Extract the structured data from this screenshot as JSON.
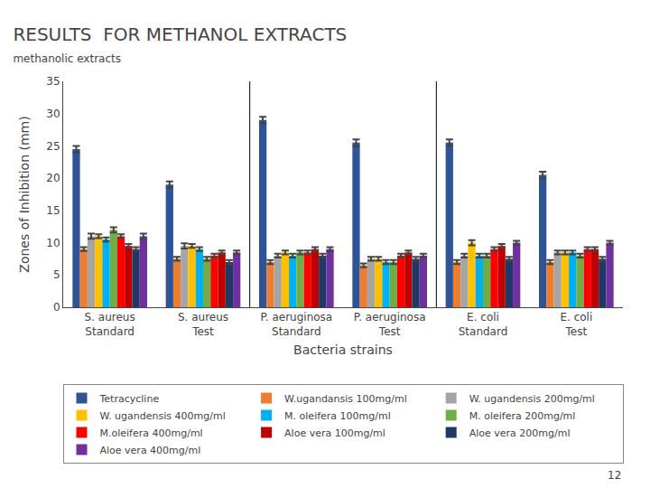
{
  "chart_data": {
    "type": "bar",
    "title": "RESULTS  FOR METHANOL EXTRACTS",
    "subtitle": "methanolic extracts",
    "xlabel": "Bacteria strains",
    "ylabel": "Zones of Inhibition (mm)",
    "annotations": [
      "12"
    ],
    "categories": [
      "S. aureus\nStandard",
      "S. aureus\nTest",
      "P. aeruginosa\nStandard",
      "P. aeruginosa\nTest",
      "E. coli\nStandard",
      "E. coli\nTest"
    ],
    "series": [
      {
        "name": "Tetracycline",
        "color": "#2F5496",
        "values": [
          24.5,
          19.0,
          29.0,
          25.5,
          25.5,
          20.5
        ],
        "errors": [
          0.5,
          0.5,
          0.5,
          0.5,
          0.5,
          0.5
        ]
      },
      {
        "name": "W.ugandansis 100mg/ml",
        "color": "#ED7D31",
        "values": [
          9.0,
          7.5,
          7.0,
          6.5,
          7.0,
          7.0
        ],
        "errors": [
          0.3,
          0.3,
          0.3,
          0.3,
          0.3,
          0.3
        ]
      },
      {
        "name": "W. ugandensis 200mg/ml",
        "color": "#A5A5A5",
        "values": [
          11.0,
          9.5,
          8.0,
          7.5,
          8.0,
          8.5
        ],
        "errors": [
          0.4,
          0.4,
          0.3,
          0.3,
          0.3,
          0.3
        ]
      },
      {
        "name": "W. ugandensis 400mg/ml",
        "color": "#FFC000",
        "values": [
          11.0,
          9.5,
          8.5,
          7.5,
          10.0,
          8.5
        ],
        "errors": [
          0.3,
          0.3,
          0.3,
          0.3,
          0.4,
          0.3
        ]
      },
      {
        "name": "M. oleifera 100mg/ml",
        "color": "#00B0F0",
        "values": [
          10.5,
          9.0,
          8.0,
          7.0,
          8.0,
          8.5
        ],
        "errors": [
          0.3,
          0.3,
          0.3,
          0.3,
          0.3,
          0.3
        ]
      },
      {
        "name": "M. oleifera 200mg/ml",
        "color": "#70AD47",
        "values": [
          12.0,
          7.5,
          8.5,
          7.0,
          8.0,
          8.0
        ],
        "errors": [
          0.4,
          0.3,
          0.3,
          0.3,
          0.3,
          0.3
        ]
      },
      {
        "name": "M.oleifera 400mg/ml",
        "color": "#FF0000",
        "values": [
          11.0,
          8.0,
          8.5,
          8.0,
          9.0,
          9.0
        ],
        "errors": [
          0.3,
          0.3,
          0.3,
          0.3,
          0.3,
          0.3
        ]
      },
      {
        "name": "Aloe vera 100mg/ml",
        "color": "#C00000",
        "values": [
          9.5,
          8.5,
          9.0,
          8.5,
          9.5,
          9.0
        ],
        "errors": [
          0.3,
          0.3,
          0.3,
          0.3,
          0.3,
          0.3
        ]
      },
      {
        "name": "Aloe vera 200mg/ml",
        "color": "#1F3864",
        "values": [
          9.0,
          7.0,
          8.0,
          7.5,
          7.5,
          7.5
        ],
        "errors": [
          0.3,
          0.3,
          0.3,
          0.3,
          0.3,
          0.3
        ]
      },
      {
        "name": "Aloe vera 400mg/ml",
        "color": "#7030A0",
        "values": [
          11.0,
          8.5,
          9.0,
          8.0,
          10.0,
          10.0
        ],
        "errors": [
          0.4,
          0.3,
          0.3,
          0.3,
          0.3,
          0.3
        ]
      }
    ],
    "ylim": [
      0,
      35
    ],
    "yticks": [
      0,
      5,
      10,
      15,
      20,
      25,
      30,
      35
    ],
    "grid": false,
    "legend": "bottom"
  }
}
